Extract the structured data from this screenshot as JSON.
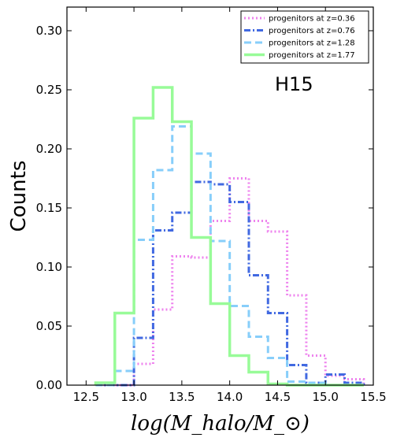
{
  "chart_data": {
    "type": "line",
    "title": "",
    "xlabel": "log(M_halo/M_⊙)",
    "ylabel": "Counts",
    "xlim": [
      12.3,
      15.5
    ],
    "ylim": [
      0.0,
      0.32
    ],
    "xticks": [
      12.5,
      13.0,
      13.5,
      14.0,
      14.5,
      15.0,
      15.5
    ],
    "xtick_labels": [
      "12.5",
      "13.0",
      "13.5",
      "14.0",
      "14.5",
      "15.0",
      "15.5"
    ],
    "yticks": [
      0.0,
      0.05,
      0.1,
      0.15,
      0.2,
      0.25,
      0.3
    ],
    "ytick_labels": [
      "0.00",
      "0.05",
      "0.10",
      "0.15",
      "0.20",
      "0.25",
      "0.30"
    ],
    "bin_edges": [
      12.6,
      12.8,
      13.0,
      13.2,
      13.4,
      13.6,
      13.8,
      14.0,
      14.2,
      14.4,
      14.6,
      14.8,
      15.0,
      15.2,
      15.4
    ],
    "annotation": "H15",
    "grid": false,
    "legend_position": "top-right",
    "series": [
      {
        "name": "progenitors at z=0.36",
        "color": "#ee82ee",
        "style": "dotted",
        "values": [
          0.0,
          0.0,
          0.018,
          0.064,
          0.109,
          0.108,
          0.139,
          0.175,
          0.139,
          0.13,
          0.076,
          0.025,
          0.008,
          0.005
        ]
      },
      {
        "name": "progenitors at z=0.76",
        "color": "#4169e1",
        "style": "dashdot",
        "values": [
          0.0,
          0.0,
          0.04,
          0.131,
          0.146,
          0.172,
          0.17,
          0.155,
          0.093,
          0.061,
          0.017,
          0.002,
          0.009,
          0.002
        ]
      },
      {
        "name": "progenitors at z=1.28",
        "color": "#87cefa",
        "style": "dashed",
        "values": [
          0.0,
          0.012,
          0.123,
          0.182,
          0.219,
          0.196,
          0.122,
          0.067,
          0.041,
          0.023,
          0.003,
          0.002,
          0.0,
          0.0
        ]
      },
      {
        "name": "progenitors at z=1.77",
        "color": "#98fb98",
        "style": "solid",
        "values": [
          0.002,
          0.061,
          0.226,
          0.252,
          0.223,
          0.125,
          0.069,
          0.025,
          0.011,
          0.001,
          0.0,
          0.0,
          0.0,
          0.0
        ]
      }
    ]
  }
}
